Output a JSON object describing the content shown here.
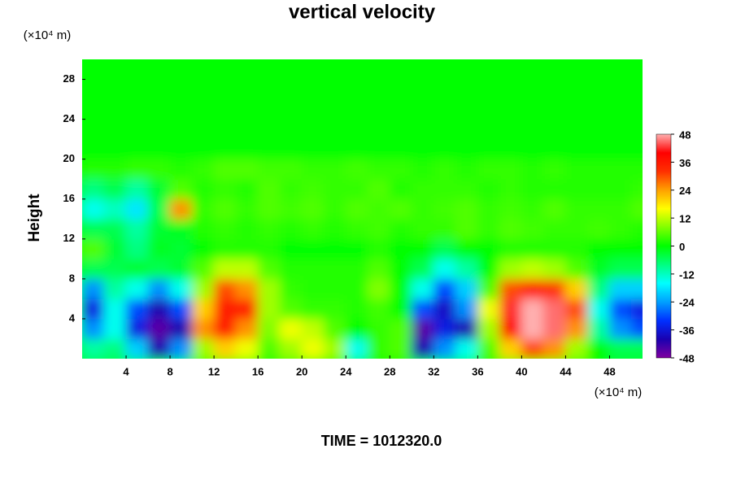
{
  "chart_data": {
    "type": "contour",
    "title": "vertical velocity",
    "y_label": "Height",
    "y_unit": "(×10⁴ m)",
    "x_unit": "(×10⁴ m)",
    "time_label": "TIME = 1012320.0",
    "xlim": [
      0,
      51
    ],
    "ylim": [
      0,
      30
    ],
    "xticks": [
      4,
      8,
      12,
      16,
      20,
      24,
      28,
      32,
      36,
      40,
      44,
      48
    ],
    "yticks": [
      4,
      8,
      12,
      16,
      20,
      24,
      28
    ],
    "zlim": [
      -48,
      48
    ],
    "zticks": [
      -48,
      -36,
      -24,
      -12,
      0,
      12,
      24,
      36,
      48
    ],
    "colormap": [
      "#7f00a0",
      "#1a00b0",
      "#0030ff",
      "#00a0ff",
      "#00ffff",
      "#00ff80",
      "#00ff00",
      "#80ff00",
      "#ffff00",
      "#ffa000",
      "#ff3000",
      "#ff0000",
      "#ffb0b0"
    ],
    "x": [
      1,
      3,
      5,
      7,
      9,
      11,
      13,
      15,
      17,
      19,
      21,
      23,
      25,
      27,
      29,
      31,
      33,
      35,
      37,
      39,
      41,
      43,
      45,
      47,
      49,
      51
    ],
    "y": [
      1,
      3,
      5,
      7,
      9,
      11,
      13,
      15,
      17,
      19,
      21,
      23,
      25,
      27,
      29
    ],
    "z": [
      [
        -10,
        -8,
        -20,
        -40,
        -25,
        10,
        20,
        15,
        5,
        10,
        15,
        10,
        -15,
        3,
        5,
        -40,
        -25,
        -15,
        5,
        20,
        30,
        25,
        10,
        0,
        -5,
        -5
      ],
      [
        -25,
        -15,
        -35,
        -45,
        -40,
        25,
        35,
        25,
        8,
        15,
        12,
        5,
        0,
        3,
        5,
        -45,
        -35,
        -40,
        10,
        40,
        48,
        45,
        25,
        -10,
        -25,
        -30
      ],
      [
        -35,
        -15,
        -30,
        -40,
        -30,
        20,
        35,
        35,
        10,
        5,
        3,
        3,
        2,
        4,
        0,
        -30,
        -38,
        -25,
        15,
        42,
        48,
        45,
        30,
        -15,
        -30,
        -35
      ],
      [
        -25,
        -10,
        -15,
        -25,
        -15,
        10,
        30,
        25,
        10,
        3,
        2,
        2,
        2,
        8,
        0,
        -15,
        -30,
        -20,
        5,
        30,
        35,
        32,
        20,
        -8,
        -20,
        -20
      ],
      [
        -5,
        -5,
        -3,
        -5,
        -3,
        5,
        12,
        12,
        5,
        2,
        2,
        2,
        2,
        5,
        0,
        -5,
        -15,
        -10,
        0,
        10,
        12,
        10,
        5,
        -2,
        -5,
        -5
      ],
      [
        5,
        -3,
        -8,
        -2,
        -3,
        0,
        2,
        2,
        2,
        0,
        0,
        0,
        0,
        2,
        0,
        0,
        -5,
        0,
        0,
        2,
        2,
        2,
        2,
        0,
        0,
        0
      ],
      [
        -5,
        -5,
        -10,
        -3,
        -2,
        2,
        3,
        2,
        3,
        2,
        3,
        2,
        3,
        4,
        2,
        3,
        3,
        5,
        3,
        5,
        4,
        3,
        3,
        4,
        3,
        2
      ],
      [
        -15,
        -12,
        -18,
        -5,
        25,
        3,
        5,
        3,
        5,
        4,
        5,
        3,
        5,
        4,
        5,
        3,
        4,
        5,
        3,
        4,
        3,
        5,
        3,
        3,
        3,
        5
      ],
      [
        -8,
        -5,
        -10,
        -3,
        5,
        2,
        3,
        2,
        5,
        3,
        4,
        3,
        3,
        5,
        2,
        3,
        3,
        3,
        2,
        3,
        2,
        2,
        2,
        2,
        2,
        3
      ],
      [
        2,
        2,
        3,
        3,
        2,
        3,
        5,
        5,
        4,
        4,
        3,
        3,
        4,
        3,
        3,
        2,
        3,
        2,
        3,
        3,
        2,
        3,
        2,
        2,
        2,
        2
      ],
      [
        0,
        0,
        0,
        0,
        0,
        0,
        0,
        0,
        0,
        0,
        0,
        0,
        0,
        0,
        0,
        0,
        0,
        0,
        0,
        0,
        0,
        0,
        0,
        0,
        0,
        0
      ],
      [
        0,
        0,
        0,
        0,
        0,
        0,
        0,
        0,
        0,
        0,
        0,
        0,
        0,
        0,
        0,
        0,
        0,
        0,
        0,
        0,
        0,
        0,
        0,
        0,
        0,
        0
      ],
      [
        0,
        0,
        0,
        0,
        0,
        0,
        0,
        0,
        0,
        0,
        0,
        0,
        0,
        0,
        0,
        0,
        0,
        0,
        0,
        0,
        0,
        0,
        0,
        0,
        0,
        0
      ],
      [
        0,
        0,
        0,
        0,
        0,
        0,
        0,
        0,
        0,
        0,
        0,
        0,
        0,
        0,
        0,
        0,
        0,
        0,
        0,
        0,
        0,
        0,
        0,
        0,
        0,
        0
      ],
      [
        0,
        0,
        0,
        0,
        0,
        0,
        0,
        0,
        0,
        0,
        0,
        0,
        0,
        0,
        0,
        0,
        0,
        0,
        0,
        0,
        0,
        0,
        0,
        0,
        0,
        0
      ]
    ]
  }
}
